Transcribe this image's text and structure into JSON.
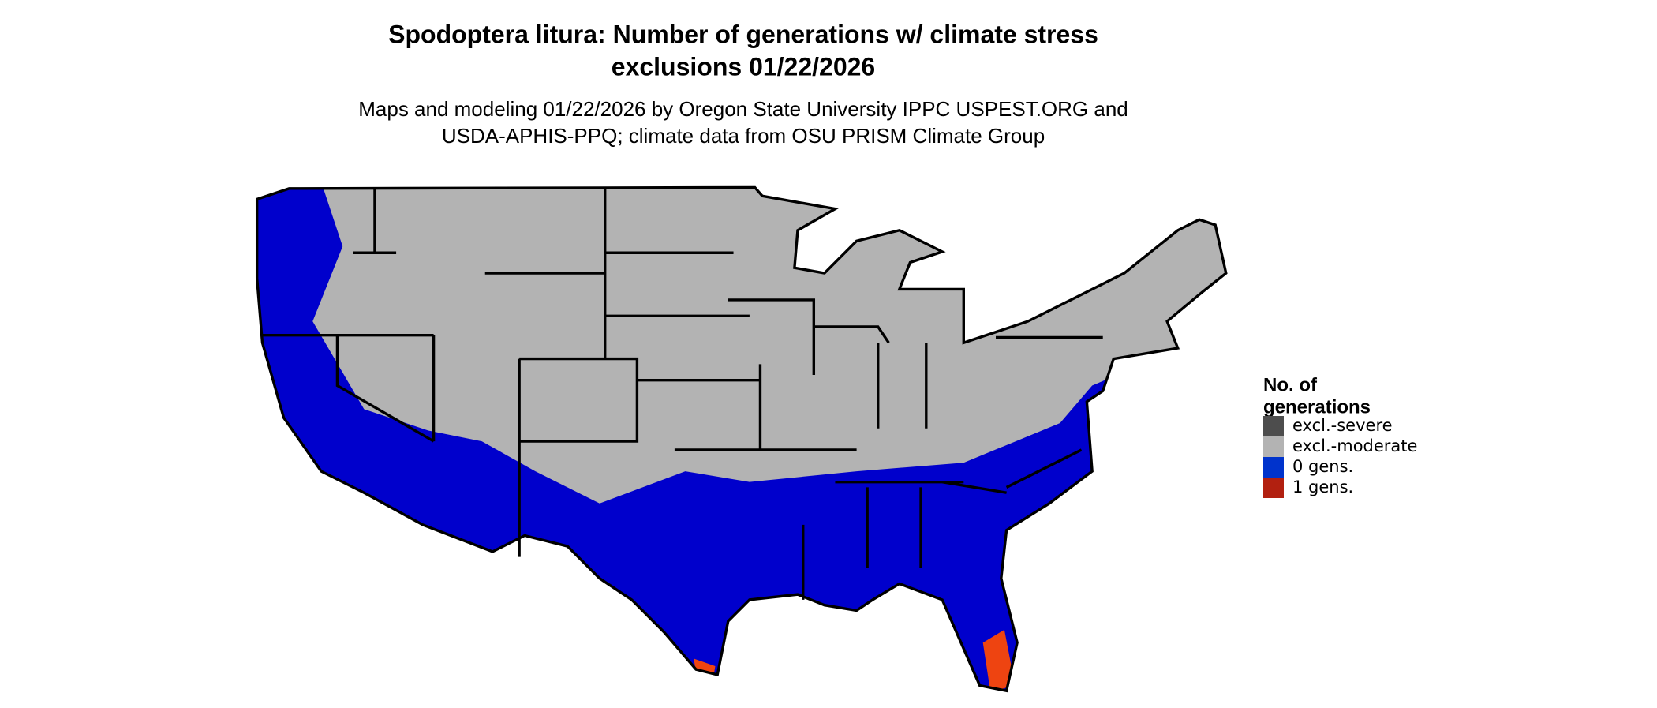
{
  "title": [
    "Spodoptera litura: Number of generations w/ climate stress",
    "exclusions 01/22/2026"
  ],
  "subtitle": [
    "Maps and modeling 01/22/2026 by Oregon State University IPPC USPEST.ORG and",
    "USDA-APHIS-PPQ; climate data from OSU PRISM Climate Group"
  ],
  "legend": {
    "title": [
      "No. of",
      "generations"
    ],
    "items": [
      {
        "label": "excl.-severe",
        "color": "#4d4d4d"
      },
      {
        "label": "excl.-moderate",
        "color": "#b3b3b3"
      },
      {
        "label": "0 gens.",
        "color": "#0033cc"
      },
      {
        "label": "1 gens.",
        "color": "#b22010"
      }
    ]
  }
}
